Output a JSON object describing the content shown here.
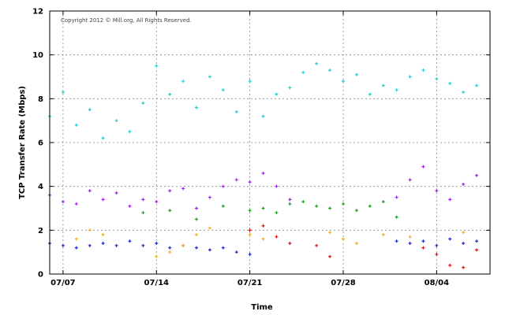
{
  "chart_data": {
    "type": "scatter",
    "title": "",
    "xlabel": "Time",
    "ylabel": "TCP Transfer Rate (Mbps)",
    "annotation": "Copyright 2012 © Mill.org, All Rights Reserved.",
    "x_ticks": [
      "07/07",
      "07/14",
      "07/21",
      "07/28",
      "08/04"
    ],
    "y_ticks": [
      0,
      2,
      4,
      6,
      8,
      10,
      12
    ],
    "xlim": [
      "2012-07-06",
      "2012-08-08"
    ],
    "ylim": [
      0,
      12
    ],
    "grid": true,
    "legend": "none",
    "series": [
      {
        "color": "#20d0d0",
        "points": [
          [
            "2012-07-06",
            7.2
          ],
          [
            "2012-07-07",
            8.3
          ],
          [
            "2012-07-08",
            6.8
          ],
          [
            "2012-07-09",
            7.5
          ],
          [
            "2012-07-10",
            6.2
          ],
          [
            "2012-07-11",
            7.0
          ],
          [
            "2012-07-12",
            6.5
          ],
          [
            "2012-07-13",
            7.8
          ],
          [
            "2012-07-14",
            9.5
          ],
          [
            "2012-07-15",
            8.2
          ],
          [
            "2012-07-16",
            8.8
          ],
          [
            "2012-07-17",
            7.6
          ],
          [
            "2012-07-18",
            9.0
          ],
          [
            "2012-07-19",
            8.4
          ],
          [
            "2012-07-20",
            7.4
          ],
          [
            "2012-07-21",
            8.8
          ],
          [
            "2012-07-22",
            7.2
          ],
          [
            "2012-07-23",
            8.2
          ],
          [
            "2012-07-24",
            8.5
          ],
          [
            "2012-07-25",
            9.2
          ],
          [
            "2012-07-26",
            9.6
          ],
          [
            "2012-07-27",
            9.3
          ],
          [
            "2012-07-28",
            8.8
          ],
          [
            "2012-07-29",
            9.1
          ],
          [
            "2012-07-30",
            8.2
          ],
          [
            "2012-07-31",
            8.6
          ],
          [
            "2012-08-01",
            8.4
          ],
          [
            "2012-08-02",
            9.0
          ],
          [
            "2012-08-03",
            9.3
          ],
          [
            "2012-08-04",
            8.9
          ],
          [
            "2012-08-05",
            8.7
          ],
          [
            "2012-08-06",
            8.3
          ],
          [
            "2012-08-07",
            8.6
          ]
        ]
      },
      {
        "color": "#a020f0",
        "points": [
          [
            "2012-07-06",
            3.6
          ],
          [
            "2012-07-07",
            3.3
          ],
          [
            "2012-07-08",
            3.2
          ],
          [
            "2012-07-09",
            3.8
          ],
          [
            "2012-07-10",
            3.4
          ],
          [
            "2012-07-11",
            3.7
          ],
          [
            "2012-07-12",
            3.1
          ],
          [
            "2012-07-13",
            3.4
          ],
          [
            "2012-07-14",
            3.3
          ],
          [
            "2012-07-15",
            3.8
          ],
          [
            "2012-07-16",
            3.9
          ],
          [
            "2012-07-17",
            3.0
          ],
          [
            "2012-07-18",
            3.5
          ],
          [
            "2012-07-19",
            4.0
          ],
          [
            "2012-07-20",
            4.3
          ],
          [
            "2012-07-21",
            4.2
          ],
          [
            "2012-07-22",
            4.6
          ],
          [
            "2012-07-23",
            4.0
          ],
          [
            "2012-07-24",
            3.4
          ],
          [
            "2012-08-01",
            3.5
          ],
          [
            "2012-08-02",
            4.3
          ],
          [
            "2012-08-03",
            4.9
          ],
          [
            "2012-08-04",
            3.8
          ],
          [
            "2012-08-05",
            3.4
          ],
          [
            "2012-08-06",
            4.1
          ],
          [
            "2012-08-07",
            4.5
          ]
        ]
      },
      {
        "color": "#20a020",
        "points": [
          [
            "2012-07-13",
            2.8
          ],
          [
            "2012-07-15",
            2.9
          ],
          [
            "2012-07-17",
            2.5
          ],
          [
            "2012-07-19",
            3.1
          ],
          [
            "2012-07-21",
            2.9
          ],
          [
            "2012-07-22",
            3.0
          ],
          [
            "2012-07-23",
            2.8
          ],
          [
            "2012-07-24",
            3.2
          ],
          [
            "2012-07-25",
            3.3
          ],
          [
            "2012-07-26",
            3.1
          ],
          [
            "2012-07-27",
            3.0
          ],
          [
            "2012-07-28",
            3.2
          ],
          [
            "2012-07-29",
            2.9
          ],
          [
            "2012-07-30",
            3.1
          ],
          [
            "2012-07-31",
            3.3
          ],
          [
            "2012-08-01",
            2.6
          ]
        ]
      },
      {
        "color": "#1c28d0",
        "points": [
          [
            "2012-07-06",
            1.4
          ],
          [
            "2012-07-07",
            1.3
          ],
          [
            "2012-07-08",
            1.2
          ],
          [
            "2012-07-09",
            1.3
          ],
          [
            "2012-07-10",
            1.4
          ],
          [
            "2012-07-11",
            1.3
          ],
          [
            "2012-07-12",
            1.5
          ],
          [
            "2012-07-13",
            1.3
          ],
          [
            "2012-07-14",
            1.4
          ],
          [
            "2012-07-15",
            1.2
          ],
          [
            "2012-07-16",
            1.3
          ],
          [
            "2012-07-17",
            1.2
          ],
          [
            "2012-07-18",
            1.1
          ],
          [
            "2012-07-19",
            1.2
          ],
          [
            "2012-07-20",
            1.0
          ],
          [
            "2012-07-21",
            0.9
          ],
          [
            "2012-08-01",
            1.5
          ],
          [
            "2012-08-02",
            1.4
          ],
          [
            "2012-08-03",
            1.5
          ],
          [
            "2012-08-04",
            1.3
          ],
          [
            "2012-08-05",
            1.6
          ],
          [
            "2012-08-06",
            1.4
          ],
          [
            "2012-08-07",
            1.5
          ]
        ]
      },
      {
        "color": "#f0b020",
        "points": [
          [
            "2012-07-08",
            1.6
          ],
          [
            "2012-07-09",
            2.0
          ],
          [
            "2012-07-10",
            1.8
          ],
          [
            "2012-07-14",
            0.8
          ],
          [
            "2012-07-15",
            1.0
          ],
          [
            "2012-07-16",
            1.3
          ],
          [
            "2012-07-17",
            1.8
          ],
          [
            "2012-07-18",
            2.1
          ],
          [
            "2012-07-21",
            1.8
          ],
          [
            "2012-07-22",
            1.6
          ],
          [
            "2012-07-27",
            1.9
          ],
          [
            "2012-07-28",
            1.6
          ],
          [
            "2012-07-29",
            1.4
          ],
          [
            "2012-07-31",
            1.8
          ],
          [
            "2012-08-02",
            1.7
          ],
          [
            "2012-08-06",
            1.9
          ]
        ]
      },
      {
        "color": "#e01010",
        "points": [
          [
            "2012-07-21",
            2.0
          ],
          [
            "2012-07-22",
            2.2
          ],
          [
            "2012-07-23",
            1.7
          ],
          [
            "2012-07-24",
            1.4
          ],
          [
            "2012-07-26",
            1.3
          ],
          [
            "2012-07-27",
            0.8
          ],
          [
            "2012-08-03",
            1.2
          ],
          [
            "2012-08-04",
            0.9
          ],
          [
            "2012-08-05",
            0.4
          ],
          [
            "2012-08-06",
            0.3
          ],
          [
            "2012-08-07",
            1.1
          ]
        ]
      }
    ]
  }
}
